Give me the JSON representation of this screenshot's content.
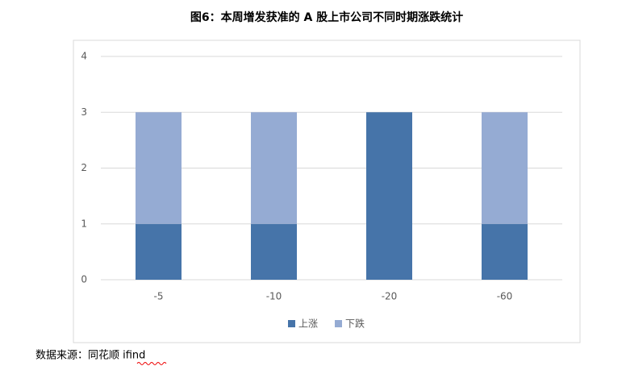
{
  "chart_data": {
    "type": "stacked_bar",
    "title": "图6：本周增发获准的 A 股上市公司不同时期涨跌统计",
    "categories": [
      "-5",
      "-10",
      "-20",
      "-60"
    ],
    "series": [
      {
        "name": "上涨",
        "color": "#4674a9",
        "values": [
          1,
          1,
          3,
          1
        ]
      },
      {
        "name": "下跌",
        "color": "#95abd3",
        "values": [
          2,
          2,
          0,
          2
        ]
      }
    ],
    "ylim": [
      0,
      4
    ],
    "yticks": [
      0,
      1,
      2,
      3,
      4
    ],
    "grid": true,
    "legend": "bottom",
    "source": "数据来源：同花顺 ifind"
  }
}
